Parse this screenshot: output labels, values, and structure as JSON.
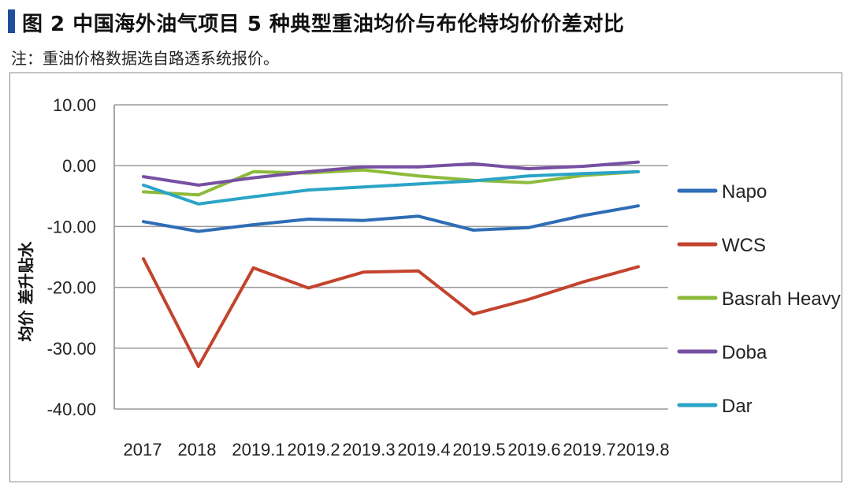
{
  "header": {
    "title": "图 2  中国海外油气项目 5 种典型重油均价与布伦特均价价差对比",
    "note": "注：重油价格数据选自路透系统报价。",
    "accent_color": "#1f4e9c"
  },
  "chart_data": {
    "type": "line",
    "title": "图 2  中国海外油气项目 5 种典型重油均价与布伦特均价价差对比",
    "xlabel": "",
    "ylabel": "均价 差升贴水",
    "ylim": [
      -40,
      10
    ],
    "yticks": [
      10,
      0,
      -10,
      -20,
      -30,
      -40
    ],
    "ytick_labels": [
      "10.00",
      "0.00",
      "-10.00",
      "-20.00",
      "-30.00",
      "-40.00"
    ],
    "grid": true,
    "legend_position": "right",
    "categories": [
      "2017",
      "2018",
      "2019.1",
      "2019.2",
      "2019.3",
      "2019.4",
      "2019.5",
      "2019.6",
      "2019.7",
      "2019.8"
    ],
    "series": [
      {
        "name": "Napo",
        "color": "#2e6db5",
        "values": [
          -9.2,
          -10.8,
          -9.7,
          -8.8,
          -9.0,
          -8.3,
          -10.6,
          -10.2,
          -8.2,
          -6.6
        ]
      },
      {
        "name": "WCS",
        "color": "#c3432d",
        "values": [
          -15.3,
          -33.0,
          -16.8,
          -20.1,
          -17.5,
          -17.3,
          -24.4,
          -22.0,
          -19.1,
          -16.6
        ]
      },
      {
        "name": "Basrah Heavy",
        "color": "#8cba3a",
        "values": [
          -4.3,
          -4.8,
          -1.0,
          -1.2,
          -0.7,
          -1.7,
          -2.4,
          -2.8,
          -1.6,
          -1.0
        ]
      },
      {
        "name": "Doba",
        "color": "#7750a3",
        "values": [
          -1.8,
          -3.2,
          -2.0,
          -1.0,
          -0.2,
          -0.2,
          0.3,
          -0.5,
          -0.1,
          0.6
        ]
      },
      {
        "name": "Dar",
        "color": "#2ba4c6",
        "values": [
          -3.2,
          -6.3,
          -5.1,
          -4.0,
          -3.5,
          -3.0,
          -2.5,
          -1.7,
          -1.3,
          -1.0
        ]
      }
    ]
  }
}
